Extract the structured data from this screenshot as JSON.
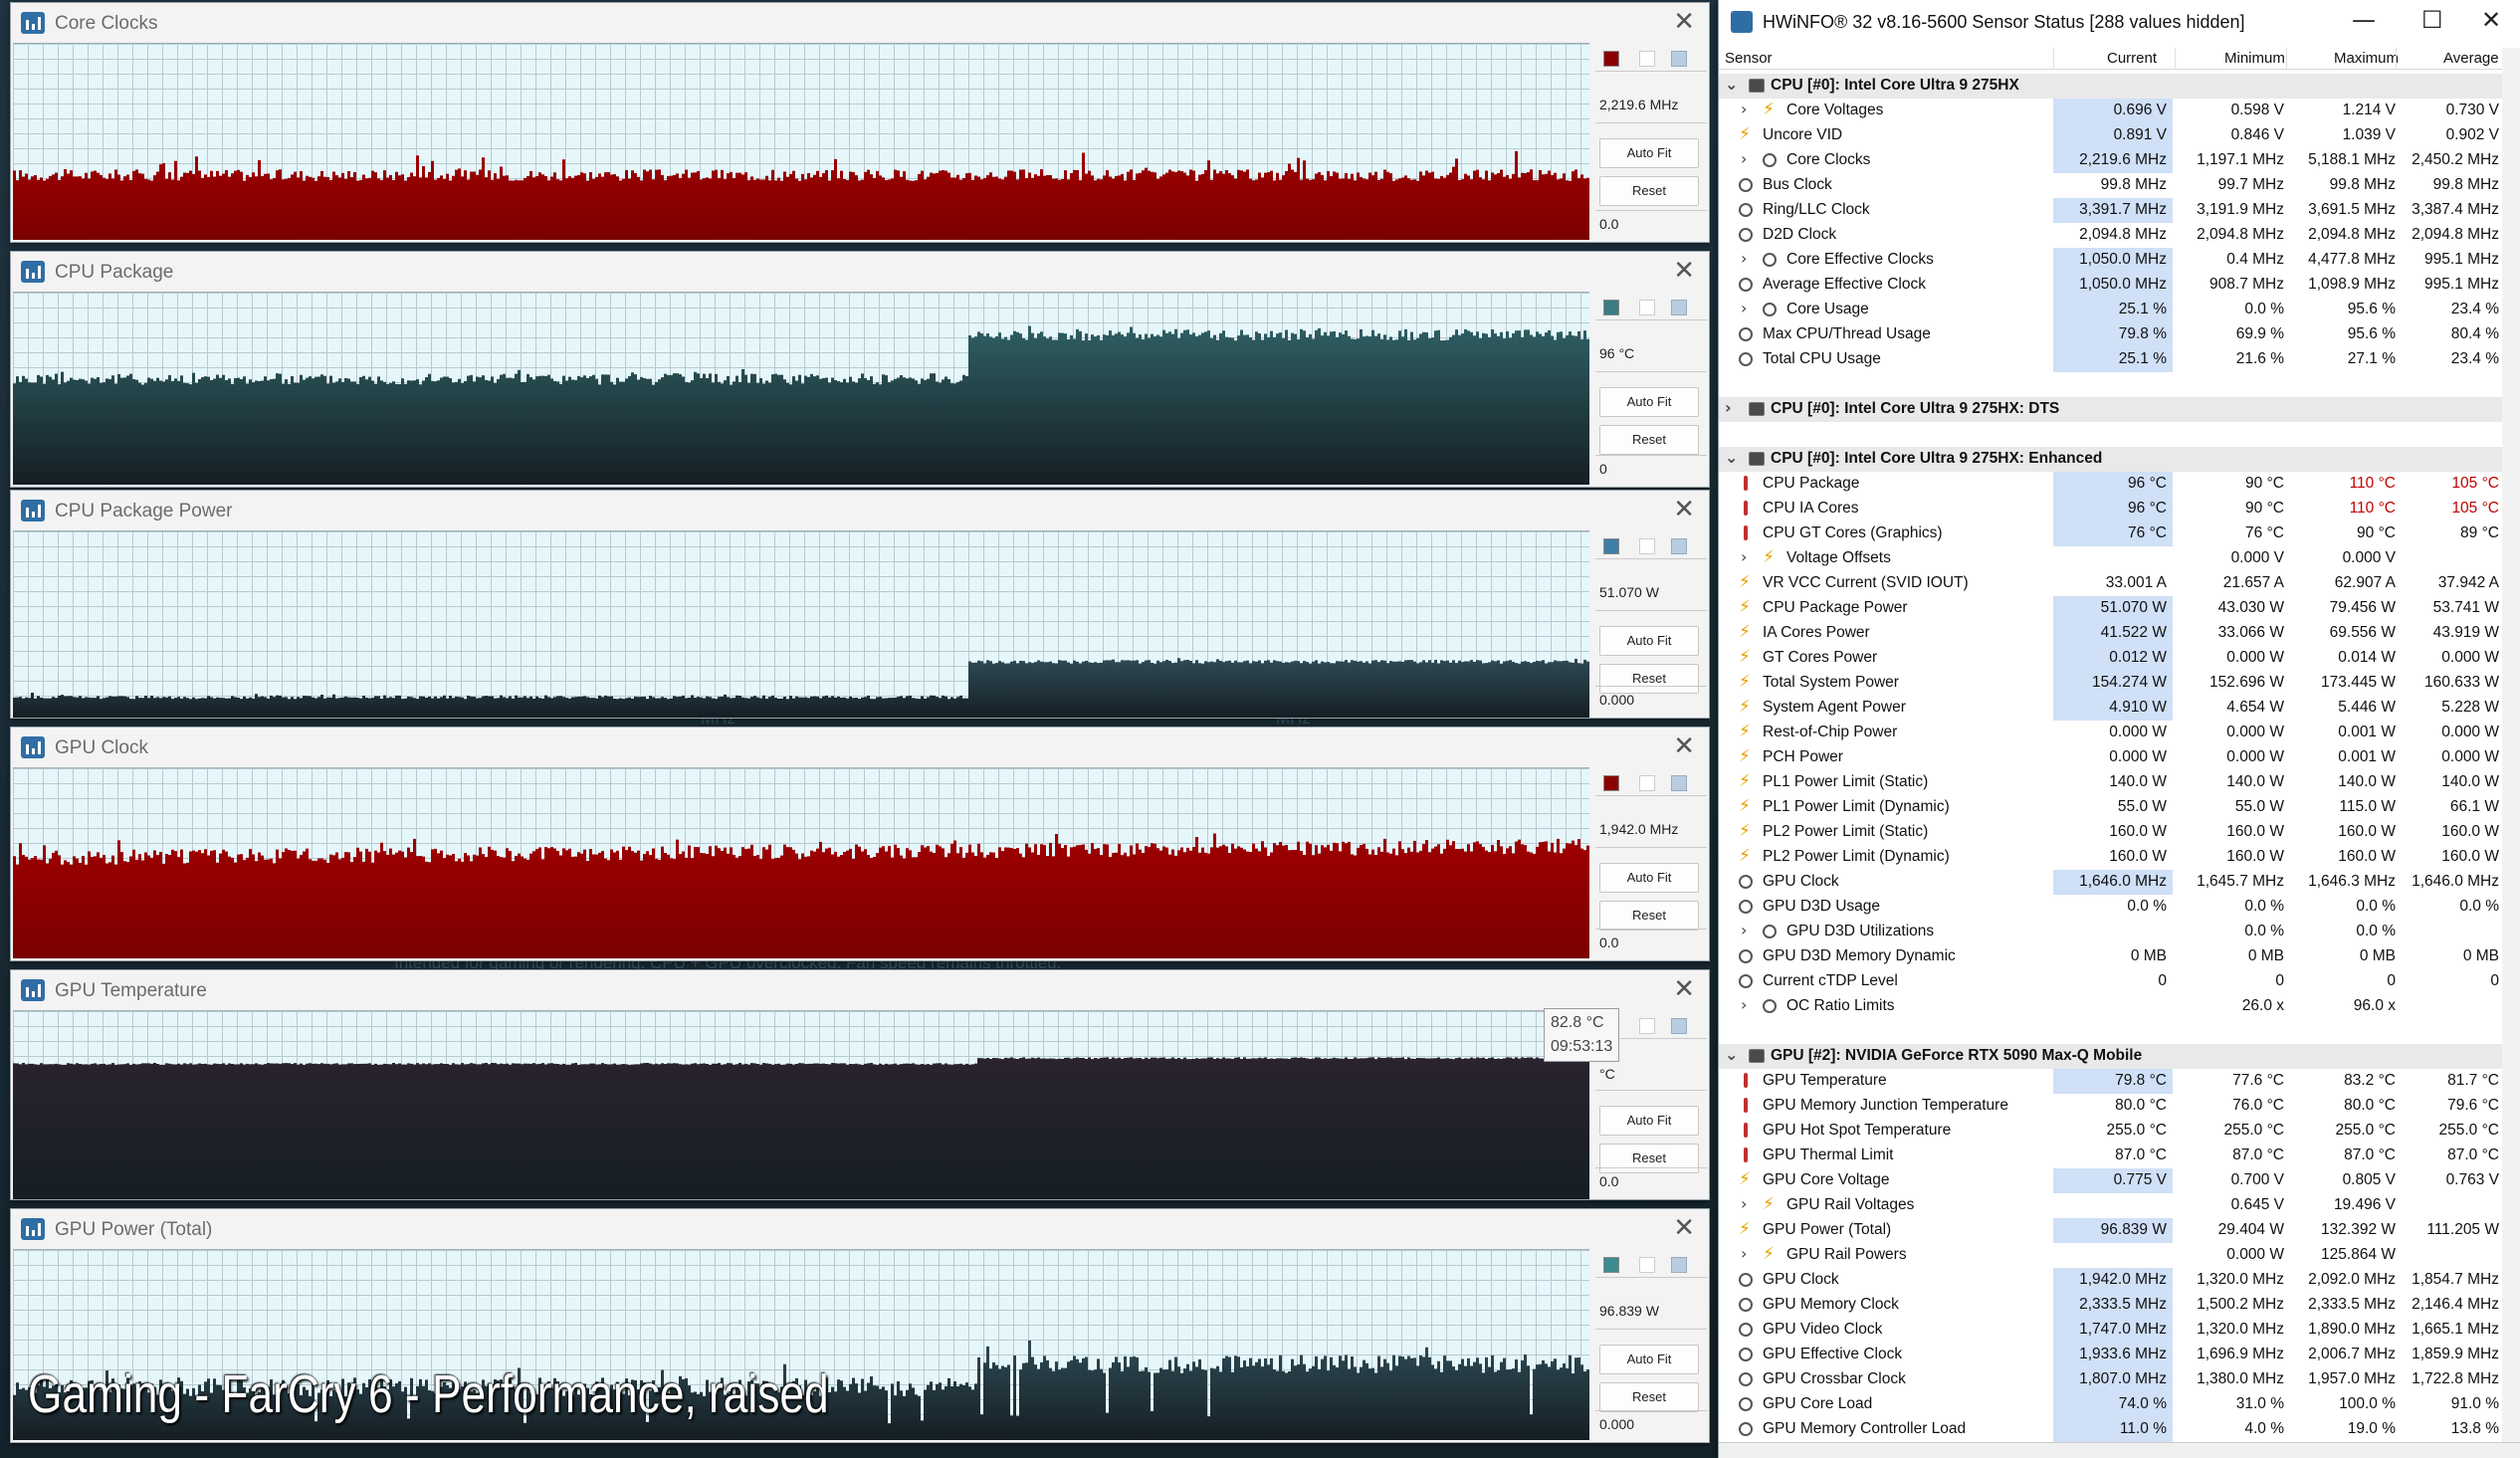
{
  "graphs": [
    {
      "title": "Core Clocks",
      "value": "2,219.6 MHz",
      "min": "0.0",
      "chip_top": "",
      "color": "#a00000",
      "chip": "#8b0000",
      "auto_fit": "Auto Fit",
      "reset": "Reset"
    },
    {
      "title": "CPU Package",
      "value": "96 °C",
      "min": "0",
      "chip_top": "",
      "color": "#2e5f63",
      "chip": "#3a7d83",
      "auto_fit": "Auto Fit",
      "reset": "Reset"
    },
    {
      "title": "CPU Package Power",
      "value": "51.070 W",
      "min": "0.000",
      "chip_top": "",
      "color": "#2e4b55",
      "chip": "#3d7fa6",
      "auto_fit": "Auto Fit",
      "reset": "Reset"
    },
    {
      "title": "GPU Clock",
      "value": "1,942.0 MHz",
      "min": "0.0",
      "chip_top": "",
      "color": "#a00000",
      "chip": "#8b0000",
      "auto_fit": "Auto Fit",
      "reset": "Reset"
    },
    {
      "title": "GPU Temperature",
      "value": "°C",
      "min": "0.0",
      "chip_top": "",
      "color": "#2a2330",
      "chip": "#555",
      "auto_fit": "Auto Fit",
      "reset": "Reset",
      "tooltip": {
        "value": "82.8 °C",
        "time": "09:53:13"
      }
    },
    {
      "title": "GPU Power (Total)",
      "value": "96.839 W",
      "min": "0.000",
      "chip_top": "",
      "color": "#2e4b55",
      "chip": "#3d8a8f",
      "auto_fit": "Auto Fit",
      "reset": "Reset"
    }
  ],
  "overlay_text": "Gaming - FarCry 6 - Performance, raised",
  "faint_texts": [
    "Intended for gaming or rendering. CPU + GPU overclocked. Fan speed remains throttled.",
    "MHz",
    "MHz"
  ],
  "hwinfo": {
    "title": "HWiNFO® 32 v8.16-5600 Sensor Status [288 values hidden]",
    "controls": {
      "minimize": "—",
      "maximize": "☐",
      "close": "✕"
    },
    "columns": {
      "sensor": "Sensor",
      "current": "Current",
      "minimum": "Minimum",
      "maximum": "Maximum",
      "average": "Average"
    },
    "rows": [
      {
        "t": "group",
        "exp": "v",
        "name": "CPU [#0]: Intel Core Ultra 9 275HX"
      },
      {
        "t": "bolt",
        "exp": ">",
        "name": "Core Voltages",
        "cur": "0.696 V",
        "min": "0.598 V",
        "max": "1.214 V",
        "avg": "0.730 V",
        "hl": true
      },
      {
        "t": "bolt",
        "name": "Uncore VID",
        "cur": "0.891 V",
        "min": "0.846 V",
        "max": "1.039 V",
        "avg": "0.902 V",
        "hl": true
      },
      {
        "t": "clock",
        "exp": ">",
        "name": "Core Clocks",
        "cur": "2,219.6 MHz",
        "min": "1,197.1 MHz",
        "max": "5,188.1 MHz",
        "avg": "2,450.2 MHz",
        "hl": true
      },
      {
        "t": "clock",
        "name": "Bus Clock",
        "cur": "99.8 MHz",
        "min": "99.7 MHz",
        "max": "99.8 MHz",
        "avg": "99.8 MHz"
      },
      {
        "t": "clock",
        "name": "Ring/LLC Clock",
        "cur": "3,391.7 MHz",
        "min": "3,191.9 MHz",
        "max": "3,691.5 MHz",
        "avg": "3,387.4 MHz",
        "hl": true
      },
      {
        "t": "clock",
        "name": "D2D Clock",
        "cur": "2,094.8 MHz",
        "min": "2,094.8 MHz",
        "max": "2,094.8 MHz",
        "avg": "2,094.8 MHz"
      },
      {
        "t": "clock",
        "exp": ">",
        "name": "Core Effective Clocks",
        "cur": "1,050.0 MHz",
        "min": "0.4 MHz",
        "max": "4,477.8 MHz",
        "avg": "995.1 MHz",
        "hl": true
      },
      {
        "t": "clock",
        "name": "Average Effective Clock",
        "cur": "1,050.0 MHz",
        "min": "908.7 MHz",
        "max": "1,098.9 MHz",
        "avg": "995.1 MHz",
        "hl": true
      },
      {
        "t": "clock",
        "exp": ">",
        "name": "Core Usage",
        "cur": "25.1 %",
        "min": "0.0 %",
        "max": "95.6 %",
        "avg": "23.4 %",
        "hl": true
      },
      {
        "t": "clock",
        "name": "Max CPU/Thread Usage",
        "cur": "79.8 %",
        "min": "69.9 %",
        "max": "95.6 %",
        "avg": "80.4 %",
        "hl": true
      },
      {
        "t": "clock",
        "name": "Total CPU Usage",
        "cur": "25.1 %",
        "min": "21.6 %",
        "max": "27.1 %",
        "avg": "23.4 %",
        "hl": true
      },
      {
        "t": "blank"
      },
      {
        "t": "group",
        "exp": ">",
        "name": "CPU [#0]: Intel Core Ultra 9 275HX: DTS"
      },
      {
        "t": "blank"
      },
      {
        "t": "group",
        "exp": "v",
        "name": "CPU [#0]: Intel Core Ultra 9 275HX: Enhanced"
      },
      {
        "t": "therm",
        "name": "CPU Package",
        "cur": "96 °C",
        "min": "90 °C",
        "max": "110 °C",
        "avg": "105 °C",
        "hl": true,
        "maxhot": true,
        "avghot": true
      },
      {
        "t": "therm",
        "name": "CPU IA Cores",
        "cur": "96 °C",
        "min": "90 °C",
        "max": "110 °C",
        "avg": "105 °C",
        "hl": true,
        "maxhot": true,
        "avghot": true
      },
      {
        "t": "therm",
        "name": "CPU GT Cores (Graphics)",
        "cur": "76 °C",
        "min": "76 °C",
        "max": "90 °C",
        "avg": "89 °C",
        "hl": true
      },
      {
        "t": "bolt",
        "exp": ">",
        "name": "Voltage Offsets",
        "cur": "",
        "min": "0.000 V",
        "max": "0.000 V",
        "avg": ""
      },
      {
        "t": "bolt",
        "name": "VR VCC Current (SVID IOUT)",
        "cur": "33.001 A",
        "min": "21.657 A",
        "max": "62.907 A",
        "avg": "37.942 A"
      },
      {
        "t": "bolt",
        "name": "CPU Package Power",
        "cur": "51.070 W",
        "min": "43.030 W",
        "max": "79.456 W",
        "avg": "53.741 W",
        "hl": true
      },
      {
        "t": "bolt",
        "name": "IA Cores Power",
        "cur": "41.522 W",
        "min": "33.066 W",
        "max": "69.556 W",
        "avg": "43.919 W",
        "hl": true
      },
      {
        "t": "bolt",
        "name": "GT Cores Power",
        "cur": "0.012 W",
        "min": "0.000 W",
        "max": "0.014 W",
        "avg": "0.000 W",
        "hl": true
      },
      {
        "t": "bolt",
        "name": "Total System Power",
        "cur": "154.274 W",
        "min": "152.696 W",
        "max": "173.445 W",
        "avg": "160.633 W",
        "hl": true
      },
      {
        "t": "bolt",
        "name": "System Agent Power",
        "cur": "4.910 W",
        "min": "4.654 W",
        "max": "5.446 W",
        "avg": "5.228 W",
        "hl": true
      },
      {
        "t": "bolt",
        "name": "Rest-of-Chip Power",
        "cur": "0.000 W",
        "min": "0.000 W",
        "max": "0.001 W",
        "avg": "0.000 W"
      },
      {
        "t": "bolt",
        "name": "PCH Power",
        "cur": "0.000 W",
        "min": "0.000 W",
        "max": "0.001 W",
        "avg": "0.000 W"
      },
      {
        "t": "bolt",
        "name": "PL1 Power Limit (Static)",
        "cur": "140.0 W",
        "min": "140.0 W",
        "max": "140.0 W",
        "avg": "140.0 W"
      },
      {
        "t": "bolt",
        "name": "PL1 Power Limit (Dynamic)",
        "cur": "55.0 W",
        "min": "55.0 W",
        "max": "115.0 W",
        "avg": "66.1 W"
      },
      {
        "t": "bolt",
        "name": "PL2 Power Limit (Static)",
        "cur": "160.0 W",
        "min": "160.0 W",
        "max": "160.0 W",
        "avg": "160.0 W"
      },
      {
        "t": "bolt",
        "name": "PL2 Power Limit (Dynamic)",
        "cur": "160.0 W",
        "min": "160.0 W",
        "max": "160.0 W",
        "avg": "160.0 W"
      },
      {
        "t": "clock",
        "name": "GPU Clock",
        "cur": "1,646.0 MHz",
        "min": "1,645.7 MHz",
        "max": "1,646.3 MHz",
        "avg": "1,646.0 MHz",
        "hl": true
      },
      {
        "t": "clock",
        "name": "GPU D3D Usage",
        "cur": "0.0 %",
        "min": "0.0 %",
        "max": "0.0 %",
        "avg": "0.0 %"
      },
      {
        "t": "clock",
        "exp": ">",
        "name": "GPU D3D Utilizations",
        "cur": "",
        "min": "0.0 %",
        "max": "0.0 %",
        "avg": ""
      },
      {
        "t": "clock",
        "name": "GPU D3D Memory Dynamic",
        "cur": "0 MB",
        "min": "0 MB",
        "max": "0 MB",
        "avg": "0 MB"
      },
      {
        "t": "clock",
        "name": "Current cTDP Level",
        "cur": "0",
        "min": "0",
        "max": "0",
        "avg": "0"
      },
      {
        "t": "clock",
        "exp": ">",
        "name": "OC Ratio Limits",
        "cur": "",
        "min": "26.0 x",
        "max": "96.0 x",
        "avg": ""
      },
      {
        "t": "blank"
      },
      {
        "t": "group",
        "exp": "v",
        "name": "GPU [#2]: NVIDIA  GeForce RTX 5090 Max-Q Mobile"
      },
      {
        "t": "therm",
        "name": "GPU Temperature",
        "cur": "79.8 °C",
        "min": "77.6 °C",
        "max": "83.2 °C",
        "avg": "81.7 °C",
        "hl": true
      },
      {
        "t": "therm",
        "name": "GPU Memory Junction Temperature",
        "cur": "80.0 °C",
        "min": "76.0 °C",
        "max": "80.0 °C",
        "avg": "79.6 °C"
      },
      {
        "t": "therm",
        "name": "GPU Hot Spot Temperature",
        "cur": "255.0 °C",
        "min": "255.0 °C",
        "max": "255.0 °C",
        "avg": "255.0 °C"
      },
      {
        "t": "therm",
        "name": "GPU Thermal Limit",
        "cur": "87.0 °C",
        "min": "87.0 °C",
        "max": "87.0 °C",
        "avg": "87.0 °C"
      },
      {
        "t": "bolt",
        "name": "GPU Core Voltage",
        "cur": "0.775 V",
        "min": "0.700 V",
        "max": "0.805 V",
        "avg": "0.763 V",
        "hl": true
      },
      {
        "t": "bolt",
        "exp": ">",
        "name": "GPU Rail Voltages",
        "cur": "",
        "min": "0.645 V",
        "max": "19.496 V",
        "avg": ""
      },
      {
        "t": "bolt",
        "name": "GPU Power (Total)",
        "cur": "96.839 W",
        "min": "29.404 W",
        "max": "132.392 W",
        "avg": "111.205 W",
        "hl": true
      },
      {
        "t": "bolt",
        "exp": ">",
        "name": "GPU Rail Powers",
        "cur": "",
        "min": "0.000 W",
        "max": "125.864 W",
        "avg": ""
      },
      {
        "t": "clock",
        "name": "GPU Clock",
        "cur": "1,942.0 MHz",
        "min": "1,320.0 MHz",
        "max": "2,092.0 MHz",
        "avg": "1,854.7 MHz",
        "hl": true
      },
      {
        "t": "clock",
        "name": "GPU Memory Clock",
        "cur": "2,333.5 MHz",
        "min": "1,500.2 MHz",
        "max": "2,333.5 MHz",
        "avg": "2,146.4 MHz",
        "hl": true
      },
      {
        "t": "clock",
        "name": "GPU Video Clock",
        "cur": "1,747.0 MHz",
        "min": "1,320.0 MHz",
        "max": "1,890.0 MHz",
        "avg": "1,665.1 MHz",
        "hl": true
      },
      {
        "t": "clock",
        "name": "GPU Effective Clock",
        "cur": "1,933.6 MHz",
        "min": "1,696.9 MHz",
        "max": "2,006.7 MHz",
        "avg": "1,859.9 MHz",
        "hl": true
      },
      {
        "t": "clock",
        "name": "GPU Crossbar Clock",
        "cur": "1,807.0 MHz",
        "min": "1,380.0 MHz",
        "max": "1,957.0 MHz",
        "avg": "1,722.8 MHz",
        "hl": true
      },
      {
        "t": "clock",
        "name": "GPU Core Load",
        "cur": "74.0 %",
        "min": "31.0 %",
        "max": "100.0 %",
        "avg": "91.0 %",
        "hl": true
      },
      {
        "t": "clock",
        "name": "GPU Memory Controller Load",
        "cur": "11.0 %",
        "min": "4.0 %",
        "max": "19.0 %",
        "avg": "13.8 %",
        "hl": true
      }
    ]
  }
}
